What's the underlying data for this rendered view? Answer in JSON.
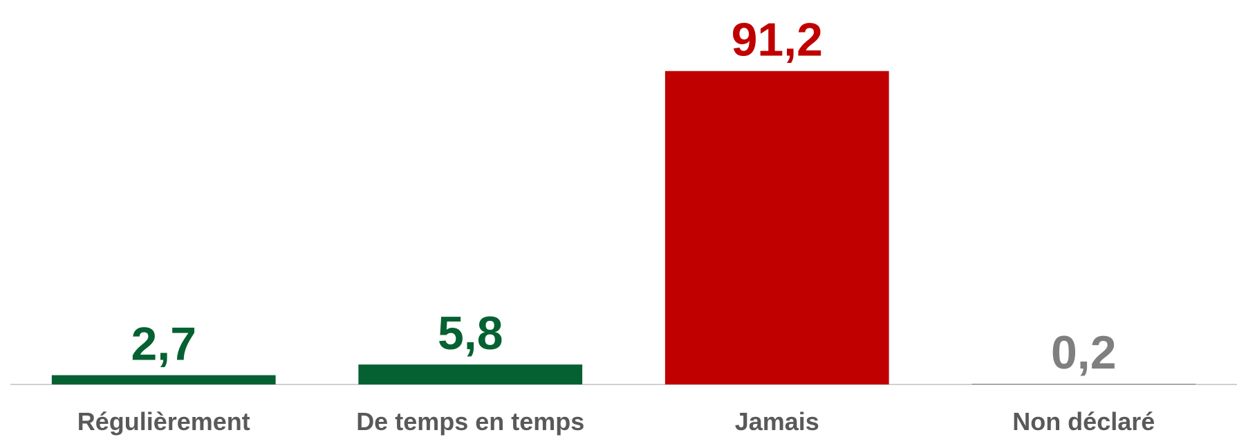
{
  "chart_data": {
    "type": "bar",
    "categories": [
      "Régulièrement",
      "De temps en temps",
      "Jamais",
      "Non déclaré"
    ],
    "values": [
      2.7,
      5.8,
      91.2,
      0.2
    ],
    "value_labels": [
      "2,7",
      "5,8",
      "91,2",
      "0,2"
    ],
    "colors": [
      "#056132",
      "#056132",
      "#c00000",
      "#7f7f7f"
    ],
    "ylim": [
      0,
      100
    ]
  }
}
